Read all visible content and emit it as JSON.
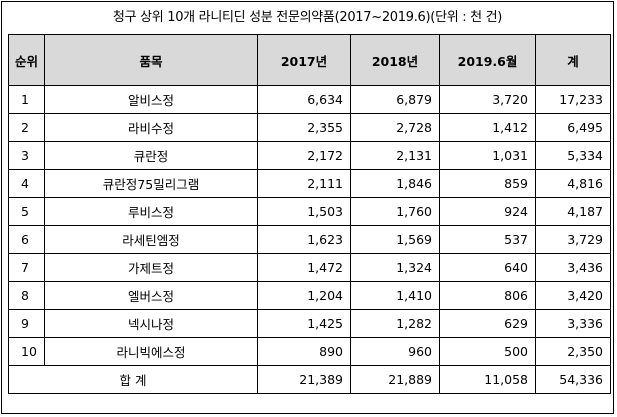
{
  "title": "청구 상위 10개 라니티딘 성분 전문의약품(2017~2019.6)(단위 : 천 건)",
  "table": {
    "headers": [
      "순위",
      "품목",
      "2017년",
      "2018년",
      "2019.6월",
      "계"
    ],
    "rows": [
      {
        "rank": "1",
        "name": "알비스정",
        "y2017": "6,634",
        "y2018": "6,879",
        "y2019": "3,720",
        "total": "17,233"
      },
      {
        "rank": "2",
        "name": "라비수정",
        "y2017": "2,355",
        "y2018": "2,728",
        "y2019": "1,412",
        "total": "6,495"
      },
      {
        "rank": "3",
        "name": "큐란정",
        "y2017": "2,172",
        "y2018": "2,131",
        "y2019": "1,031",
        "total": "5,334"
      },
      {
        "rank": "4",
        "name": "큐란정75밀리그램",
        "y2017": "2,111",
        "y2018": "1,846",
        "y2019": "859",
        "total": "4,816"
      },
      {
        "rank": "5",
        "name": "루비스정",
        "y2017": "1,503",
        "y2018": "1,760",
        "y2019": "924",
        "total": "4,187"
      },
      {
        "rank": "6",
        "name": "라세틴엠정",
        "y2017": "1,623",
        "y2018": "1,569",
        "y2019": "537",
        "total": "3,729"
      },
      {
        "rank": "7",
        "name": "가제트정",
        "y2017": "1,472",
        "y2018": "1,324",
        "y2019": "640",
        "total": "3,436"
      },
      {
        "rank": "8",
        "name": "엘버스정",
        "y2017": "1,204",
        "y2018": "1,410",
        "y2019": "806",
        "total": "3,420"
      },
      {
        "rank": "9",
        "name": "넥시나정",
        "y2017": "1,425",
        "y2018": "1,282",
        "y2019": "629",
        "total": "3,336"
      },
      {
        "rank": "10",
        "name": "라니빅에스정",
        "y2017": "890",
        "y2018": "960",
        "y2019": "500",
        "total": "2,350"
      }
    ],
    "total_row": {
      "label": "합 계",
      "y2017": "21,389",
      "y2018": "21,889",
      "y2019": "11,058",
      "total": "54,336"
    }
  },
  "colors": {
    "header_bg": "#d9d9d9",
    "border": "#000000"
  }
}
